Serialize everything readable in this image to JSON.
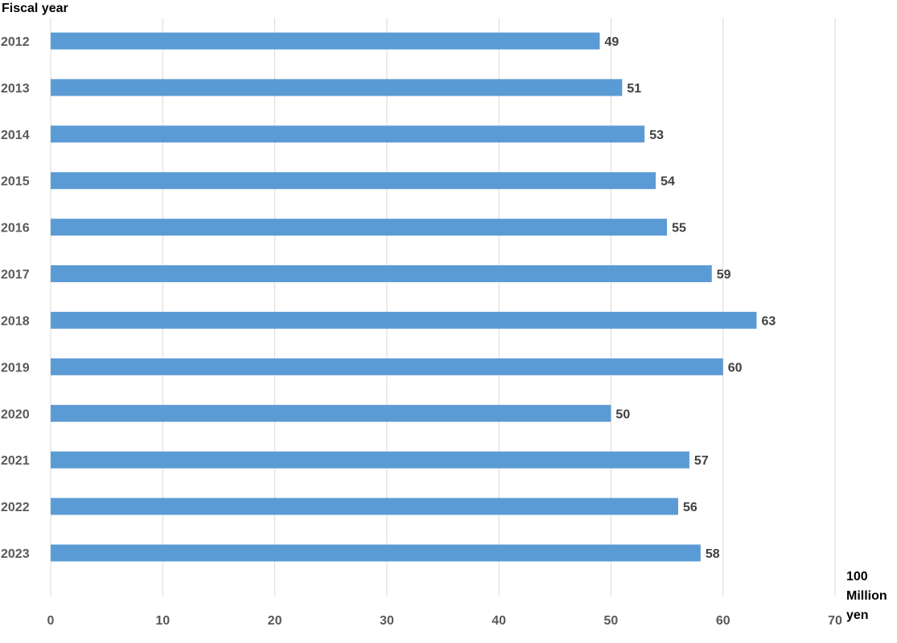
{
  "chart_data": {
    "type": "bar",
    "orientation": "horizontal",
    "ylabel": "Fiscal year",
    "xlabel": "100 Million yen",
    "categories": [
      "2012",
      "2013",
      "2014",
      "2015",
      "2016",
      "2017",
      "2018",
      "2019",
      "2020",
      "2021",
      "2022",
      "2023"
    ],
    "values": [
      49,
      51,
      53,
      54,
      55,
      59,
      63,
      60,
      50,
      57,
      56,
      58
    ],
    "xlim": [
      0,
      70
    ],
    "xticks": [
      0,
      10,
      20,
      30,
      40,
      50,
      60,
      70
    ],
    "grid": true,
    "legend": "none",
    "bar_color": "#5b9bd5",
    "grid_color": "#d9d9d9",
    "tick_label_color": "#595959",
    "data_label_color": "#404040"
  }
}
